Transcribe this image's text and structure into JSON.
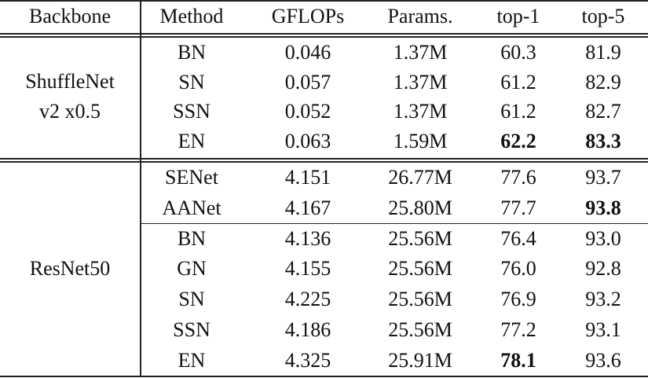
{
  "table": {
    "header": [
      "Backbone",
      "Method",
      "GFLOPs",
      "Params.",
      "top-1",
      "top-5"
    ],
    "groups": [
      {
        "backbone": [
          "ShuffleNet",
          "v2 x0.5"
        ],
        "subgroups": [
          [
            [
              "BN",
              "0.046",
              "1.37M",
              "60.3",
              "81.9"
            ],
            [
              "SN",
              "0.057",
              "1.37M",
              "61.2",
              "82.9"
            ],
            [
              "SSN",
              "0.052",
              "1.37M",
              "61.2",
              "82.7"
            ],
            [
              "EN",
              "0.063",
              "1.59M",
              {
                "text": "62.2",
                "bold": true
              },
              {
                "text": "83.3",
                "bold": true
              }
            ]
          ]
        ]
      },
      {
        "backbone": [
          "ResNet50"
        ],
        "subgroups": [
          [
            [
              "SENet",
              "4.151",
              "26.77M",
              "77.6",
              "93.7"
            ],
            [
              "AANet",
              "4.167",
              "25.80M",
              "77.7",
              {
                "text": "93.8",
                "bold": true
              }
            ]
          ],
          [
            [
              "BN",
              "4.136",
              "25.56M",
              "76.4",
              "93.0"
            ],
            [
              "GN",
              "4.155",
              "25.56M",
              "76.0",
              "92.8"
            ],
            [
              "SN",
              "4.225",
              "25.56M",
              "76.9",
              "93.2"
            ],
            [
              "SSN",
              "4.186",
              "25.56M",
              "77.2",
              "93.1"
            ],
            [
              "EN",
              "4.325",
              "25.91M",
              {
                "text": "78.1",
                "bold": true
              },
              "93.6"
            ]
          ]
        ]
      }
    ]
  }
}
